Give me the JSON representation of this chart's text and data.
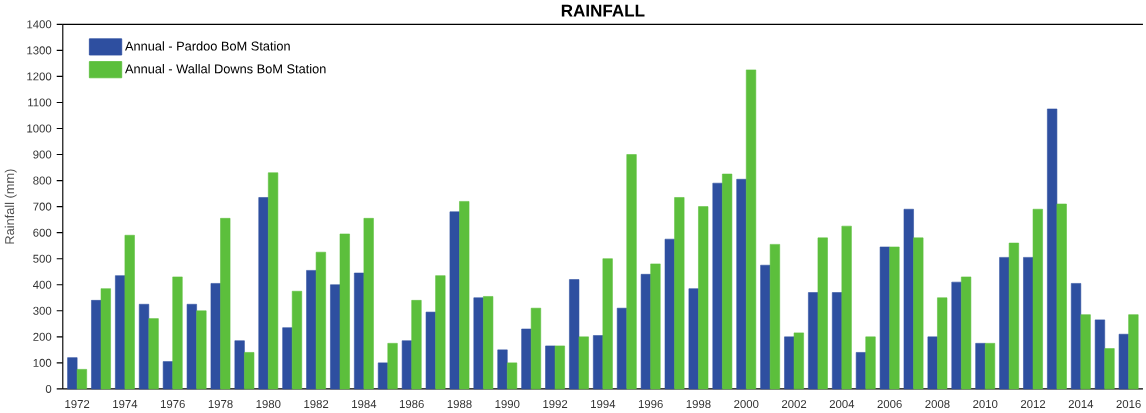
{
  "chart_data": {
    "type": "bar",
    "title": "RAINFALL",
    "ylabel": "Rainfall (mm)",
    "categories": [
      "1972",
      null,
      "1974",
      null,
      "1976",
      null,
      "1978",
      null,
      "1980",
      null,
      "1982",
      null,
      "1984",
      null,
      "1986",
      null,
      "1988",
      null,
      "1990",
      null,
      "1992",
      null,
      "1994",
      null,
      "1996",
      null,
      "1998",
      null,
      "2000",
      null,
      "2002",
      null,
      "2004",
      null,
      "2006",
      null,
      "2008",
      null,
      "2010",
      null,
      "2012",
      null,
      "2014",
      null,
      "2016"
    ],
    "series": [
      {
        "name": "Annual - Pardoo BoM Station",
        "color": "#2e4fa0",
        "values": [
          120,
          340,
          435,
          325,
          105,
          325,
          405,
          185,
          735,
          235,
          455,
          400,
          445,
          100,
          185,
          295,
          680,
          350,
          150,
          230,
          165,
          420,
          205,
          310,
          440,
          575,
          385,
          790,
          805,
          475,
          200,
          370,
          370,
          140,
          545,
          690,
          200,
          410,
          175,
          505,
          505,
          1075,
          405,
          265,
          210
        ]
      },
      {
        "name": "Annual - Wallal Downs BoM Station",
        "color": "#5cbf3c",
        "values": [
          75,
          385,
          590,
          270,
          430,
          300,
          655,
          140,
          830,
          375,
          525,
          595,
          655,
          175,
          340,
          435,
          720,
          355,
          100,
          310,
          165,
          200,
          500,
          900,
          480,
          735,
          700,
          825,
          1225,
          555,
          215,
          580,
          625,
          200,
          545,
          580,
          350,
          430,
          175,
          560,
          690,
          710,
          285,
          155,
          285
        ]
      }
    ],
    "ylim": [
      0,
      1400
    ],
    "yticks": [
      0,
      100,
      200,
      300,
      400,
      500,
      600,
      700,
      800,
      900,
      1000,
      1100,
      1200,
      1300,
      1400
    ],
    "legend": "top left",
    "grid": false
  }
}
